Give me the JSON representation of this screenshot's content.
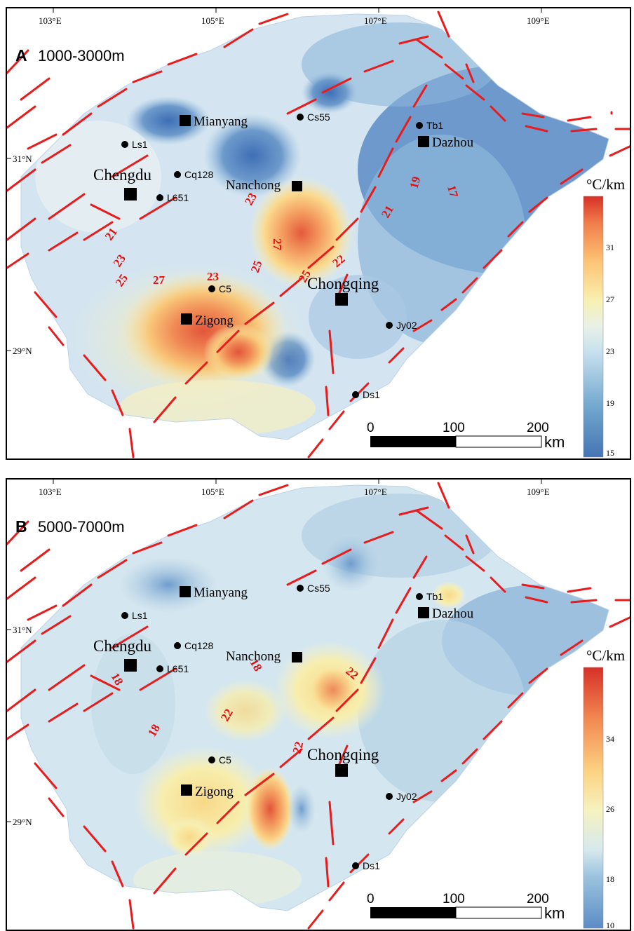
{
  "colors": {
    "fault": "#e81c1c",
    "cold": "#4f7fbf",
    "mid": "#d6e8f2",
    "warm": "#f8f0b0",
    "hot": "#e3553a"
  },
  "lon_labels": [
    "103°E",
    "105°E",
    "107°E",
    "109°E"
  ],
  "lat_labels": [
    "31°N",
    "29°N"
  ],
  "scale_bar": {
    "values": [
      "0",
      "100",
      "200"
    ],
    "unit": "km"
  },
  "wells": [
    {
      "name": "Ls1"
    },
    {
      "name": "Cq128"
    },
    {
      "name": "L651"
    },
    {
      "name": "Cs55"
    },
    {
      "name": "Tb1"
    },
    {
      "name": "C5"
    },
    {
      "name": "Jy02"
    },
    {
      "name": "Ds1"
    }
  ],
  "cities": [
    "Mianyang",
    "Chengdu",
    "Nanchong",
    "Dazhou",
    "Zigong",
    "Chongqing"
  ],
  "panels": [
    {
      "letter": "A",
      "depth": "1000-3000m",
      "unit": "°C/km",
      "colorbar_ticks": [
        "31",
        "27",
        "23",
        "19",
        "15"
      ],
      "colorbar_range": [
        15,
        35
      ],
      "contour_labels": [
        "21",
        "23",
        "25",
        "27",
        "23",
        "23",
        "27",
        "25",
        "25",
        "21",
        "19",
        "17",
        "22"
      ]
    },
    {
      "letter": "B",
      "depth": "5000-7000m",
      "unit": "°C/km",
      "colorbar_ticks": [
        "34",
        "26",
        "18",
        "10"
      ],
      "colorbar_range": [
        10,
        40
      ],
      "contour_labels": [
        "18",
        "18",
        "18",
        "22",
        "22",
        "22"
      ]
    }
  ]
}
